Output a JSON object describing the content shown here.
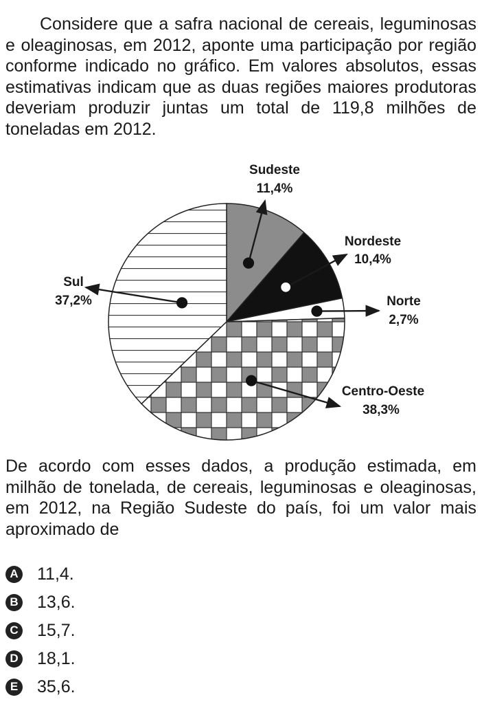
{
  "intro": "Considere que a safra nacional de cereais, leguminosas e oleaginosas, em 2012, aponte uma participação por região conforme indicado no gráfico. Em valores absolutos, essas estimativas indicam que as duas regiões maiores produtoras deveriam produzir juntas um total de 119,8 milhões de toneladas em 2012.",
  "question": "De acordo com esses dados, a produção estimada, em milhão de tonelada, de cereais, leguminosas e oleaginosas, em 2012, na Região Sudeste do país, foi um valor mais aproximado de",
  "options": [
    {
      "letter": "A",
      "text": "11,4."
    },
    {
      "letter": "B",
      "text": "13,6."
    },
    {
      "letter": "C",
      "text": "15,7."
    },
    {
      "letter": "D",
      "text": "18,1."
    },
    {
      "letter": "E",
      "text": "35,6."
    }
  ],
  "chart_data": {
    "type": "pie",
    "slices": [
      {
        "name": "Sudeste",
        "value": 11.4,
        "label": "11,4%",
        "fill": "gray"
      },
      {
        "name": "Nordeste",
        "value": 10.4,
        "label": "10,4%",
        "fill": "black"
      },
      {
        "name": "Norte",
        "value": 2.7,
        "label": "2,7%",
        "fill": "white"
      },
      {
        "name": "Centro-Oeste",
        "value": 38.3,
        "label": "38,3%",
        "fill": "checkered"
      },
      {
        "name": "Sul",
        "value": 37.2,
        "label": "37,2%",
        "fill": "horizontal-stripes"
      }
    ]
  }
}
